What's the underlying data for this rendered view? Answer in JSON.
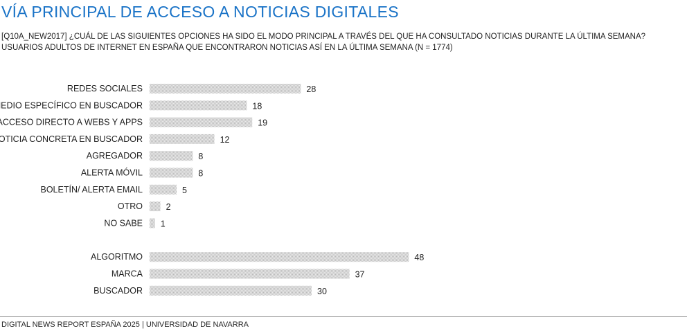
{
  "header": {
    "title": "VÍA PRINCIPAL DE ACCESO A NOTICIAS DIGITALES",
    "subtitle_line1": "[Q10A_NEW2017] ¿CUÁL DE LAS SIGUIENTES OPCIONES HA SIDO EL MODO PRINCIPAL A TRAVÉS DEL QUE HA CONSULTADO NOTICIAS DURANTE LA ÚLTIMA SEMANA?",
    "subtitle_line2": "USUARIOS ADULTOS DE INTERNET EN ESPAÑA QUE ENCONTRARON NOTICIAS ASÍ EN LA ÚLTIMA SEMANA (N = 1774)"
  },
  "chart_data": {
    "type": "bar",
    "orientation": "horizontal",
    "categories": [
      "REDES SOCIALES",
      "MEDIO ESPECÍFICO EN BUSCADOR",
      "ACCESO DIRECTO A WEBS Y APPS",
      "NOTICIA CONCRETA EN BUSCADOR",
      "AGREGADOR",
      "ALERTA MÓVIL",
      "BOLETÍN/ ALERTA EMAIL",
      "OTRO",
      "NO SABE",
      "ALGORITMO",
      "MARCA",
      "BUSCADOR"
    ],
    "values": [
      28,
      18,
      19,
      12,
      8,
      8,
      5,
      2,
      1,
      48,
      37,
      30
    ],
    "groups": [
      [
        0,
        8
      ],
      [
        9,
        11
      ]
    ],
    "bar_color": "#d4d4d4",
    "grid": false,
    "legend": "none"
  },
  "footer": {
    "source": "DIGITAL NEWS REPORT ESPAÑA 2025 | UNIVERSIDAD DE NAVARRA"
  }
}
